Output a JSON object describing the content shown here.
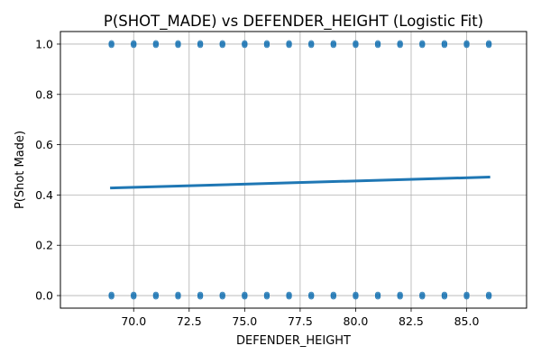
{
  "chart_data": {
    "type": "scatter",
    "title": "P(SHOT_MADE) vs DEFENDER_HEIGHT (Logistic Fit)",
    "xlabel": "DEFENDER_HEIGHT",
    "ylabel": "P(Shot Made)",
    "xlim": [
      66.7,
      87.7
    ],
    "ylim": [
      -0.05,
      1.05
    ],
    "grid": true,
    "x_ticks": [
      70.0,
      72.5,
      75.0,
      77.5,
      80.0,
      82.5,
      85.0
    ],
    "x_tick_labels": [
      "70.0",
      "72.5",
      "75.0",
      "77.5",
      "80.0",
      "82.5",
      "85.0"
    ],
    "y_ticks": [
      0.0,
      0.2,
      0.4,
      0.6,
      0.8,
      1.0
    ],
    "y_tick_labels": [
      "0.0",
      "0.2",
      "0.4",
      "0.6",
      "0.8",
      "1.0"
    ],
    "point_color": "#1f77b4",
    "line_color": "#1f77b4",
    "scatter": {
      "x": [
        69,
        70,
        71,
        72,
        73,
        74,
        75,
        76,
        77,
        78,
        79,
        80,
        81,
        82,
        83,
        84,
        85,
        86,
        69,
        70,
        71,
        72,
        73,
        74,
        75,
        76,
        77,
        78,
        79,
        80,
        81,
        82,
        83,
        84,
        85,
        86
      ],
      "y": [
        1,
        1,
        1,
        1,
        1,
        1,
        1,
        1,
        1,
        1,
        1,
        1,
        1,
        1,
        1,
        1,
        1,
        1,
        0,
        0,
        0,
        0,
        0,
        0,
        0,
        0,
        0,
        0,
        0,
        0,
        0,
        0,
        0,
        0,
        0,
        0
      ]
    },
    "fit_line": {
      "x": [
        69,
        86
      ],
      "y": [
        0.428,
        0.471
      ]
    }
  }
}
